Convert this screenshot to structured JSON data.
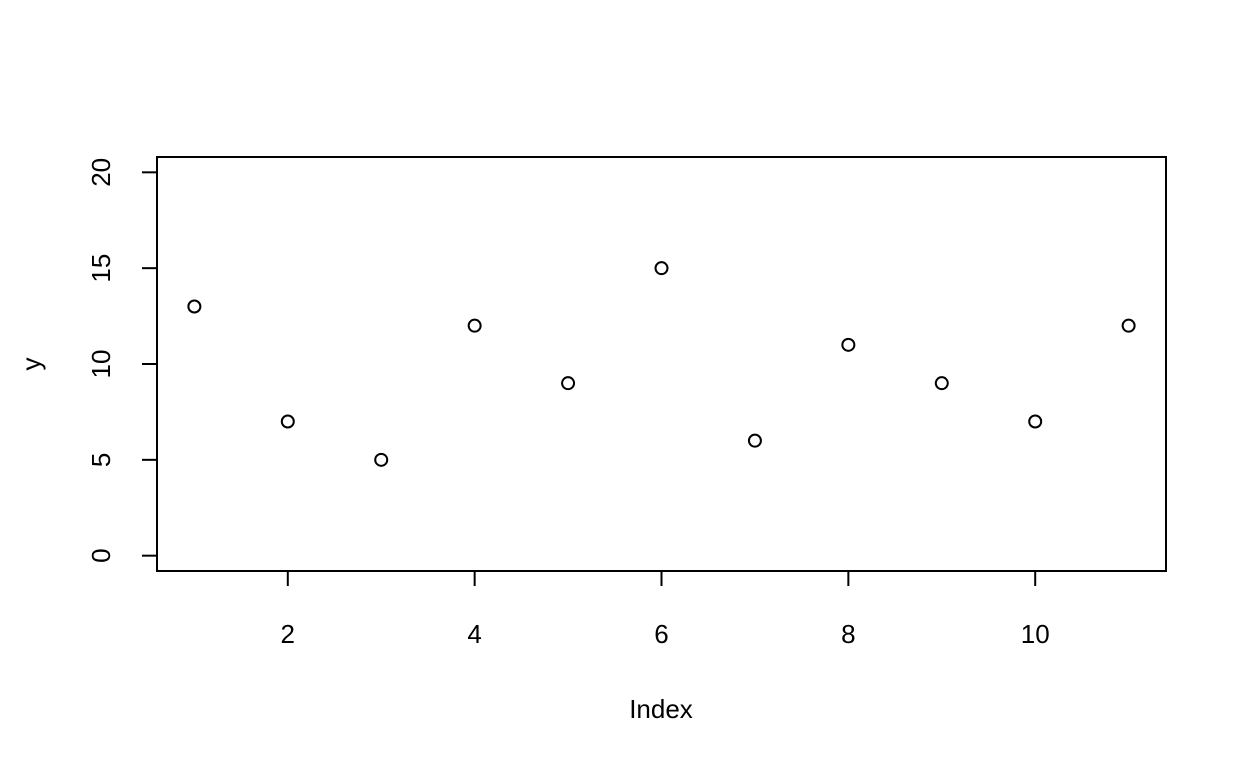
{
  "chart_data": {
    "type": "scatter",
    "x": [
      1,
      2,
      3,
      4,
      5,
      6,
      7,
      8,
      9,
      10,
      11
    ],
    "values": [
      13,
      7,
      5,
      12,
      9,
      15,
      6,
      11,
      9,
      7,
      12
    ],
    "xlabel": "Index",
    "ylabel": "y",
    "xlim": [
      0.6,
      11.4
    ],
    "ylim": [
      -0.8,
      20.8
    ],
    "xticks": [
      2,
      4,
      6,
      8,
      10
    ],
    "yticks": [
      0,
      5,
      10,
      15,
      20
    ],
    "color": "#000000",
    "grid": false
  }
}
